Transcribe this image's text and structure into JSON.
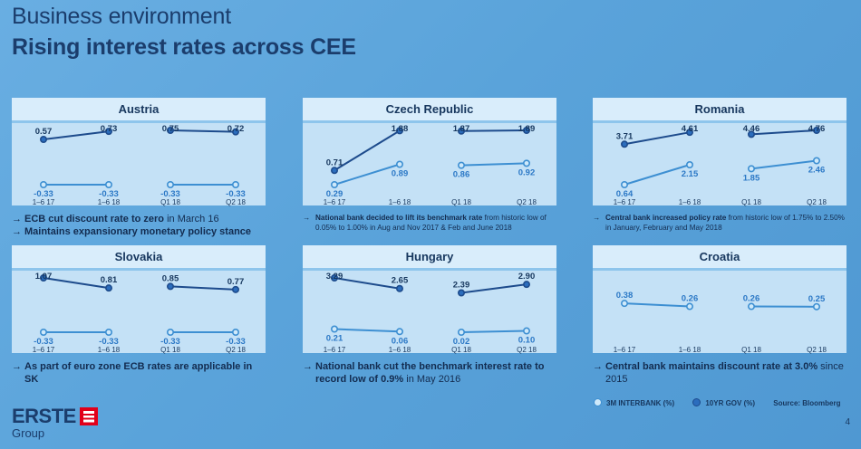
{
  "header": {
    "super_title": "Business environment",
    "title": "Rising interest rates across CEE"
  },
  "colors": {
    "series_3m": "#cfe9fa",
    "series_10yr": "#2b6dbd",
    "line_3m": "#3d8fd2",
    "line_10yr": "#1d4b8c"
  },
  "panels": [
    {
      "country": "Austria",
      "periods": [
        "1–6 17",
        "1–6 18",
        "Q1 18",
        "Q2 18"
      ],
      "chart_data": {
        "type": "line",
        "categories": [
          "1–6 17",
          "1–6 18",
          "Q1 18",
          "Q2 18"
        ],
        "series": [
          {
            "name": "10YR GOV (%)",
            "values": [
              0.57,
              0.73,
              0.75,
              0.72
            ],
            "labels": [
              "0.57",
              "0.73",
              "0.75",
              "0.72"
            ]
          },
          {
            "name": "3M INTERBANK (%)",
            "values": [
              -0.33,
              -0.33,
              -0.33,
              -0.33
            ],
            "labels": [
              "-0.33",
              "-0.33",
              "-0.33",
              "-0.33"
            ]
          }
        ]
      },
      "notes": [
        {
          "bold": "ECB cut discount rate to zero",
          "rest": " in March 16"
        },
        {
          "bold": "Maintains expansionary monetary policy stance",
          "rest": ""
        }
      ],
      "notes_small": false
    },
    {
      "country": "Czech Republic",
      "periods": [
        "1–6 17",
        "1–6 18",
        "Q1 18",
        "Q2 18"
      ],
      "chart_data": {
        "type": "line",
        "categories": [
          "1–6 17",
          "1–6 18",
          "Q1 18",
          "Q2 18"
        ],
        "series": [
          {
            "name": "10YR GOV (%)",
            "values": [
              0.71,
              1.88,
              1.87,
              1.89
            ],
            "labels": [
              "0.71",
              "1.88",
              "1.87",
              "1.89"
            ]
          },
          {
            "name": "3M INTERBANK (%)",
            "values": [
              0.29,
              0.89,
              0.86,
              0.92
            ],
            "labels": [
              "0.29",
              "0.89",
              "0.86",
              "0.92"
            ]
          }
        ]
      },
      "notes": [
        {
          "bold": "National bank decided to lift its benchmark rate",
          "rest": " from historic low of 0.05% to 1.00% in Aug and Nov 2017 & Feb and June 2018"
        }
      ],
      "notes_small": true
    },
    {
      "country": "Romania",
      "periods": [
        "1–6 17",
        "1–6 18",
        "Q1 18",
        "Q2 18"
      ],
      "chart_data": {
        "type": "line",
        "categories": [
          "1–6 17",
          "1–6 18",
          "Q1 18",
          "Q2 18"
        ],
        "series": [
          {
            "name": "10YR GOV (%)",
            "values": [
              3.71,
              4.61,
              4.46,
              4.76
            ],
            "labels": [
              "3.71",
              "4.61",
              "4.46",
              "4.76"
            ]
          },
          {
            "name": "3M INTERBANK (%)",
            "values": [
              0.64,
              2.15,
              1.85,
              2.46
            ],
            "labels": [
              "0.64",
              "2.15",
              "1.85",
              "2.46"
            ]
          }
        ]
      },
      "notes": [
        {
          "bold": "Central bank increased policy rate",
          "rest": " from historic low of 1.75% to 2.50% in January, February and May 2018"
        }
      ],
      "notes_small": true
    },
    {
      "country": "Slovakia",
      "periods": [
        "1–6 17",
        "1–6 18",
        "Q1 18",
        "Q2 18"
      ],
      "chart_data": {
        "type": "line",
        "categories": [
          "1–6 17",
          "1–6 18",
          "Q1 18",
          "Q2 18"
        ],
        "series": [
          {
            "name": "10YR GOV (%)",
            "values": [
              1.07,
              0.81,
              0.85,
              0.77
            ],
            "labels": [
              "1.07",
              "0.81",
              "0.85",
              "0.77"
            ]
          },
          {
            "name": "3M INTERBANK (%)",
            "values": [
              -0.33,
              -0.33,
              -0.33,
              -0.33
            ],
            "labels": [
              "-0.33",
              "-0.33",
              "-0.33",
              "-0.33"
            ]
          }
        ]
      },
      "notes": [
        {
          "bold": "As part of euro zone ECB rates are applicable in SK",
          "rest": ""
        }
      ],
      "notes_small": false
    },
    {
      "country": "Hungary",
      "periods": [
        "1–6 17",
        "1–6 18",
        "Q1 18",
        "Q2 18"
      ],
      "chart_data": {
        "type": "line",
        "categories": [
          "1–6 17",
          "1–6 18",
          "Q1 18",
          "Q2 18"
        ],
        "series": [
          {
            "name": "10YR GOV (%)",
            "values": [
              3.29,
              2.65,
              2.39,
              2.9
            ],
            "labels": [
              "3.29",
              "2.65",
              "2.39",
              "2.90"
            ]
          },
          {
            "name": "3M INTERBANK (%)",
            "values": [
              0.21,
              0.06,
              0.02,
              0.1
            ],
            "labels": [
              "0.21",
              "0.06",
              "0.02",
              "0.10"
            ]
          }
        ]
      },
      "notes": [
        {
          "bold": "National bank cut the benchmark interest rate to record low of 0.9%",
          "rest": " in May 2016"
        }
      ],
      "notes_small": false
    },
    {
      "country": "Croatia",
      "periods": [
        "1–6 17",
        "1–6 18",
        "Q1 18",
        "Q2 18"
      ],
      "chart_data": {
        "type": "line",
        "categories": [
          "1–6 17",
          "1–6 18",
          "Q1 18",
          "Q2 18"
        ],
        "series": [
          {
            "name": "3M INTERBANK (%)",
            "values": [
              0.38,
              0.26,
              0.26,
              0.25
            ],
            "labels": [
              "0.38",
              "0.26",
              "0.26",
              "0.25"
            ]
          }
        ]
      },
      "notes": [
        {
          "bold": "Central bank maintains discount rate at 3.0%",
          "rest": " since 2015"
        }
      ],
      "notes_small": false
    }
  ],
  "legend": {
    "series_3m": "3M INTERBANK (%)",
    "series_10yr": "10YR GOV (%)",
    "source": "Source: Bloomberg"
  },
  "footer": {
    "logo_word": "ERSTE",
    "logo_group": "Group",
    "page_number": "4"
  }
}
